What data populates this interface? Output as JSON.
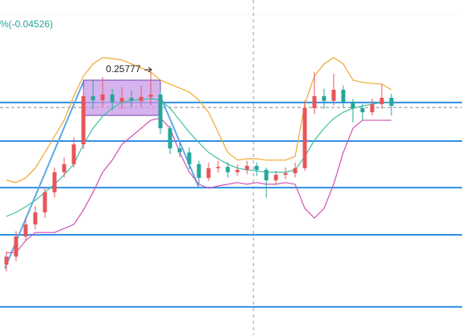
{
  "chart_data": {
    "type": "candlestick",
    "header": "%(-0.04526)",
    "annotation": "0.25777",
    "ylim": [
      0,
      100
    ],
    "up_color": "#e8545a",
    "down_color": "#26a69a",
    "open": [
      21.0,
      23.4,
      29.4,
      33.0,
      36.6,
      42.6,
      48.6,
      51.0,
      56.9,
      71.3,
      70.1,
      71.8,
      69.6,
      70.8,
      69.9,
      71.1,
      71.8,
      61.7,
      55.7,
      54.5,
      51.0,
      46.9,
      49.8,
      50.2,
      48.6,
      49.3,
      50.5,
      49.3,
      46.2,
      47.8,
      48.3,
      49.8,
      67.7,
      71.3,
      69.9,
      73.2,
      69.6,
      67.7,
      66.5,
      68.9,
      70.8
    ],
    "high": [
      25.0,
      31.0,
      35.0,
      38.5,
      44.0,
      50.0,
      53.0,
      59.0,
      73.5,
      76.0,
      77.0,
      73.5,
      74.0,
      73.0,
      74.5,
      78.5,
      73.0,
      62.5,
      57.5,
      56.0,
      52.0,
      51.5,
      52.0,
      51.5,
      51.0,
      52.0,
      51.5,
      50.0,
      49.0,
      50.0,
      51.5,
      70.0,
      78.5,
      73.5,
      78.0,
      74.5,
      70.5,
      69.0,
      70.5,
      75.0,
      72.0
    ],
    "low": [
      19.0,
      22.0,
      28.0,
      31.5,
      35.0,
      41.0,
      47.0,
      50.0,
      55.5,
      67.5,
      68.0,
      67.0,
      67.5,
      68.0,
      68.0,
      68.5,
      60.0,
      54.0,
      53.0,
      49.5,
      45.0,
      46.0,
      48.5,
      47.0,
      47.5,
      48.0,
      47.5,
      41.0,
      45.0,
      46.5,
      47.0,
      49.0,
      66.0,
      67.5,
      68.5,
      68.0,
      63.5,
      64.0,
      65.5,
      67.5,
      65.5
    ],
    "close": [
      23.4,
      29.4,
      33.0,
      36.6,
      42.6,
      48.6,
      51.0,
      56.9,
      71.3,
      70.1,
      71.8,
      69.6,
      70.8,
      69.9,
      71.1,
      71.8,
      61.7,
      55.7,
      54.5,
      51.0,
      46.9,
      49.8,
      50.2,
      48.6,
      49.3,
      50.5,
      49.3,
      46.2,
      47.8,
      48.3,
      49.8,
      67.7,
      71.3,
      69.9,
      73.2,
      69.6,
      67.7,
      66.5,
      68.9,
      70.8,
      68.4
    ],
    "series": [
      {
        "color": "#f0a830",
        "values": [
          46.2,
          45.5,
          46.9,
          49.8,
          54.5,
          59.3,
          64.1,
          71.3,
          77.3,
          80.9,
          82.8,
          82.5,
          82.1,
          80.9,
          79.7,
          78.5,
          76.1,
          74.9,
          73.7,
          72.5,
          70.1,
          66.5,
          60.5,
          54.5,
          52.2,
          52.6,
          52.6,
          52.2,
          52.2,
          52.2,
          53.3,
          68.9,
          77.3,
          80.9,
          82.8,
          80.9,
          76.1,
          75.4,
          75.1,
          74.9,
          73.2
        ]
      },
      {
        "color": "#3cc0a0",
        "values": [
          35.4,
          36.6,
          38.3,
          40.2,
          42.6,
          45.0,
          47.8,
          51.0,
          56.9,
          61.7,
          65.3,
          67.7,
          69.4,
          70.1,
          70.3,
          70.6,
          70.1,
          67.7,
          64.1,
          60.5,
          57.4,
          54.5,
          52.6,
          51.0,
          49.8,
          49.3,
          49.0,
          48.6,
          48.6,
          48.6,
          49.3,
          53.3,
          58.1,
          61.7,
          64.6,
          66.5,
          67.7,
          68.4,
          68.9,
          69.4,
          69.4
        ]
      },
      {
        "color": "#d050b0",
        "values": [
          24.6,
          24.6,
          28.2,
          30.6,
          30.6,
          30.6,
          31.8,
          33.0,
          37.3,
          42.6,
          48.6,
          52.2,
          56.9,
          59.3,
          61.7,
          64.1,
          64.8,
          61.7,
          54.5,
          48.6,
          45.0,
          43.8,
          44.5,
          45.0,
          45.5,
          45.0,
          45.5,
          45.0,
          45.0,
          45.5,
          45.0,
          37.8,
          34.9,
          37.8,
          45.0,
          54.5,
          61.7,
          64.1,
          64.1,
          64.1,
          64.1
        ]
      }
    ],
    "horizontal_lines": [
      69.4,
      57.9,
      44.0,
      29.9,
      8.4
    ],
    "horizontal_color": "#2f8fe6",
    "price_line": 67.9
  }
}
